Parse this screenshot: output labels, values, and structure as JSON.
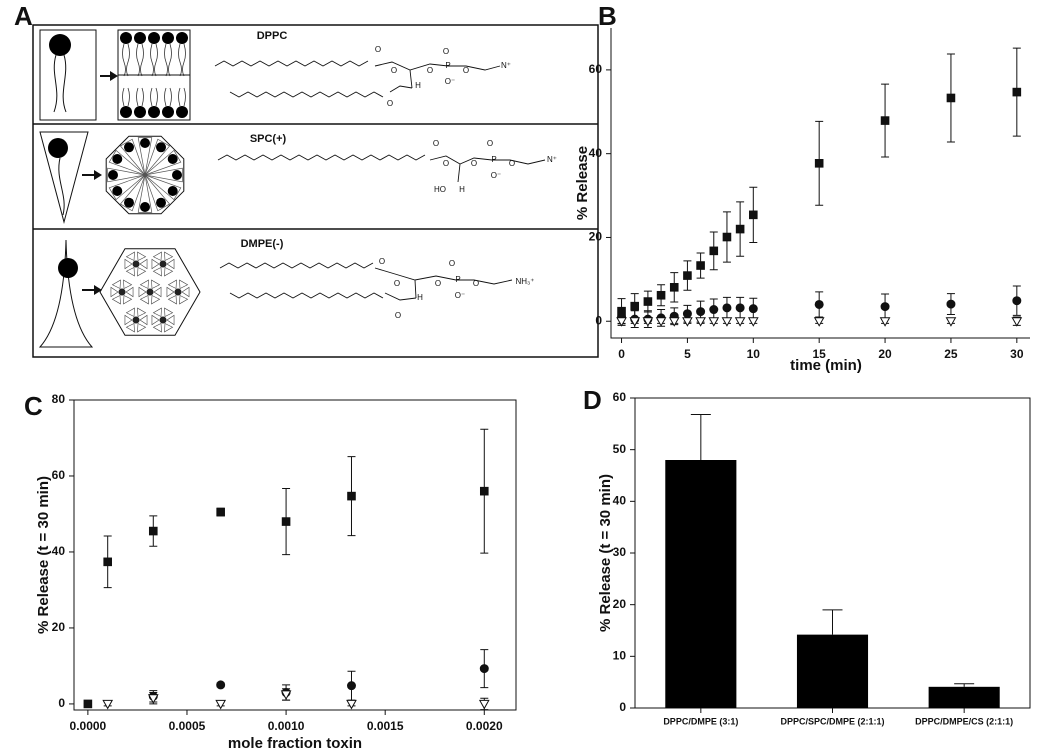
{
  "diagram": {
    "panel_label": "A",
    "rows": [
      {
        "label": "DPPC",
        "atoms": [
          "O",
          "O",
          "O",
          "H",
          "O",
          "P",
          "O",
          "O",
          "O⁻",
          "N⁺"
        ]
      },
      {
        "label": "SPC(+)",
        "atoms": [
          "O",
          "O",
          "HO",
          "H",
          "O",
          "P",
          "O",
          "O",
          "O⁻",
          "N⁺"
        ]
      },
      {
        "label": "DMPE(-)",
        "atoms": [
          "O",
          "O",
          "O",
          "H",
          "O",
          "P",
          "O",
          "O",
          "O⁻",
          "NH₃⁺"
        ]
      }
    ]
  },
  "chart_data": [
    {
      "type": "scatter",
      "panel_label": "B",
      "y_label": "% Release",
      "x_label": "time (min)",
      "frame": false,
      "x": [
        0,
        1,
        2,
        3,
        4,
        5,
        6,
        7,
        8,
        9,
        10,
        15,
        20,
        25,
        30
      ],
      "xlim": [
        -0.8,
        31
      ],
      "xticks": [
        0,
        5,
        10,
        15,
        20,
        25,
        30
      ],
      "ylim": [
        -4,
        70
      ],
      "yticks": [
        0,
        20,
        40,
        60
      ],
      "series": [
        {
          "marker": "square",
          "color": "#111111",
          "values": [
            2.4,
            3.6,
            4.7,
            6.2,
            8.1,
            10.9,
            13.3,
            16.8,
            20.1,
            22,
            25.4,
            37.7,
            47.9,
            53.3,
            54.7
          ],
          "errors": [
            3,
            3,
            2.5,
            2.5,
            3.5,
            3.5,
            3,
            4.5,
            6,
            6.5,
            6.6,
            10,
            8.7,
            10.5,
            10.5
          ]
        },
        {
          "marker": "circle",
          "color": "#111111",
          "values": [
            1,
            0.5,
            0.5,
            0.8,
            1.2,
            1.8,
            2.3,
            2.8,
            3.2,
            3.2,
            3,
            4,
            3.5,
            4.1,
            4.9
          ],
          "errors": [
            2,
            2,
            2,
            2,
            2,
            2,
            2.5,
            2.5,
            2.5,
            2.5,
            2.5,
            3,
            3,
            2.5,
            3.5
          ]
        },
        {
          "marker": "triangle-down",
          "color": "#ffffff",
          "values": [
            0,
            0,
            0,
            0,
            0,
            0,
            0,
            0,
            0,
            0,
            0,
            0,
            0,
            0,
            0
          ],
          "errors": [
            0.5,
            0.5,
            0.5,
            0.5,
            0.5,
            0.5,
            0.5,
            0.5,
            0.5,
            0.5,
            0.5,
            0.5,
            0.5,
            0.5,
            1
          ]
        }
      ]
    },
    {
      "type": "scatter",
      "panel_label": "C",
      "y_label": "% Release (t = 30 min)",
      "x_label": "mole fraction toxin",
      "frame": true,
      "x": [
        0,
        0.0001,
        0.00033,
        0.00067,
        0.001,
        0.00133,
        0.002
      ],
      "xlim": [
        -7e-05,
        0.00216
      ],
      "xticks": [
        {
          "value": 0,
          "label": "0.0000"
        },
        {
          "value": 0.0005,
          "label": "0.0005"
        },
        {
          "value": 0.001,
          "label": "0.0010"
        },
        {
          "value": 0.0015,
          "label": "0.0015"
        },
        {
          "value": 0.002,
          "label": "0.0020"
        }
      ],
      "ylim": [
        -1.6,
        80
      ],
      "yticks": [
        0,
        20,
        40,
        60,
        80
      ],
      "series": [
        {
          "marker": "square",
          "color": "#111111",
          "values": [
            0,
            37.4,
            45.5,
            50.5,
            48,
            54.7,
            56
          ],
          "errors": [
            0,
            6.8,
            4,
            1,
            8.7,
            10.4,
            16.3
          ]
        },
        {
          "marker": "circle",
          "color": "#111111",
          "values": [
            null,
            null,
            2,
            5,
            3,
            4.8,
            9.3
          ],
          "errors": [
            null,
            null,
            1.5,
            0.5,
            2,
            3.8,
            5
          ]
        },
        {
          "marker": "triangle-down",
          "color": "#ffffff",
          "values": [
            null,
            0,
            1.5,
            0,
            2.5,
            0,
            0
          ],
          "errors": [
            null,
            0.5,
            1.5,
            0.5,
            1.5,
            0.5,
            1.5
          ]
        }
      ]
    },
    {
      "type": "bar",
      "panel_label": "D",
      "y_label": "% Release (t = 30 min)",
      "frame": true,
      "categories": [
        "DPPC/DMPE (3:1)",
        "DPPC/SPC/DMPE (2:1:1)",
        "DPPC/DMPE/CS (2:1:1)"
      ],
      "values": [
        48,
        14.2,
        4.1
      ],
      "errors": [
        8.8,
        4.8,
        0.6
      ],
      "color": "#000000",
      "ylim": [
        0,
        60
      ],
      "yticks": [
        0,
        10,
        20,
        30,
        40,
        50,
        60
      ]
    }
  ]
}
